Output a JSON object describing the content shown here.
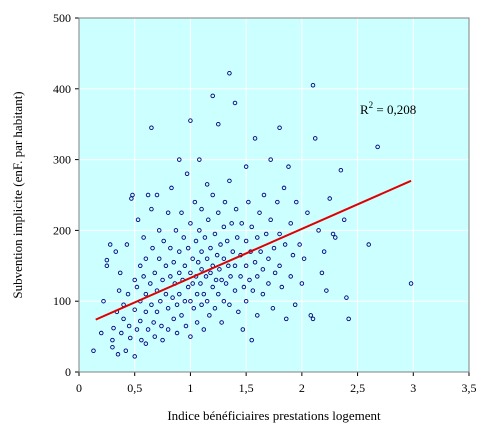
{
  "chart_data": {
    "type": "scatter",
    "xlabel": "Indice bénéficiaires prestations logement",
    "ylabel": "Subvention implicite (enF. par habitant)",
    "xlim": [
      0,
      3.5
    ],
    "ylim": [
      0,
      500
    ],
    "x_ticks": [
      "0",
      "0,5",
      "1",
      "1,5",
      "2",
      "2,5",
      "3",
      "3,5"
    ],
    "y_ticks": [
      "0",
      "100",
      "200",
      "300",
      "400",
      "500"
    ],
    "grid": true,
    "annotation": {
      "r2_label": "R",
      "r2_exp": "2",
      "r2_value": " = 0,208"
    },
    "colors": {
      "plot_bg": "#ccffff",
      "marker": "#000080",
      "trend": "#e00000",
      "grid": "#ffffff"
    },
    "trendline": {
      "x": [
        0.15,
        2.98
      ],
      "y": [
        74,
        270
      ]
    },
    "series": [
      {
        "points": [
          [
            0.13,
            30
          ],
          [
            0.2,
            55
          ],
          [
            0.22,
            100
          ],
          [
            0.25,
            158
          ],
          [
            0.25,
            150
          ],
          [
            0.28,
            180
          ],
          [
            0.3,
            45
          ],
          [
            0.3,
            35
          ],
          [
            0.31,
            62
          ],
          [
            0.33,
            170
          ],
          [
            0.34,
            85
          ],
          [
            0.35,
            25
          ],
          [
            0.36,
            115
          ],
          [
            0.37,
            140
          ],
          [
            0.38,
            55
          ],
          [
            0.4,
            75
          ],
          [
            0.4,
            95
          ],
          [
            0.42,
            30
          ],
          [
            0.43,
            180
          ],
          [
            0.44,
            110
          ],
          [
            0.45,
            65
          ],
          [
            0.46,
            48
          ],
          [
            0.47,
            245
          ],
          [
            0.48,
            250
          ],
          [
            0.5,
            130
          ],
          [
            0.5,
            88
          ],
          [
            0.5,
            22
          ],
          [
            0.52,
            120
          ],
          [
            0.52,
            60
          ],
          [
            0.53,
            215
          ],
          [
            0.55,
            150
          ],
          [
            0.55,
            100
          ],
          [
            0.55,
            72
          ],
          [
            0.56,
            45
          ],
          [
            0.58,
            190
          ],
          [
            0.58,
            135
          ],
          [
            0.6,
            160
          ],
          [
            0.6,
            110
          ],
          [
            0.6,
            85
          ],
          [
            0.6,
            40
          ],
          [
            0.62,
            250
          ],
          [
            0.62,
            60
          ],
          [
            0.64,
            125
          ],
          [
            0.65,
            345
          ],
          [
            0.65,
            95
          ],
          [
            0.65,
            230
          ],
          [
            0.66,
            175
          ],
          [
            0.67,
            70
          ],
          [
            0.68,
            140
          ],
          [
            0.68,
            50
          ],
          [
            0.7,
            250
          ],
          [
            0.7,
            115
          ],
          [
            0.7,
            85
          ],
          [
            0.72,
            160
          ],
          [
            0.72,
            200
          ],
          [
            0.73,
            100
          ],
          [
            0.74,
            65
          ],
          [
            0.75,
            130
          ],
          [
            0.75,
            45
          ],
          [
            0.76,
            185
          ],
          [
            0.78,
            110
          ],
          [
            0.78,
            150
          ],
          [
            0.8,
            225
          ],
          [
            0.8,
            90
          ],
          [
            0.8,
            60
          ],
          [
            0.82,
            135
          ],
          [
            0.82,
            175
          ],
          [
            0.83,
            260
          ],
          [
            0.84,
            105
          ],
          [
            0.85,
            75
          ],
          [
            0.85,
            155
          ],
          [
            0.86,
            125
          ],
          [
            0.87,
            200
          ],
          [
            0.88,
            95
          ],
          [
            0.88,
            55
          ],
          [
            0.9,
            300
          ],
          [
            0.9,
            140
          ],
          [
            0.9,
            110
          ],
          [
            0.9,
            170
          ],
          [
            0.92,
            80
          ],
          [
            0.92,
            225
          ],
          [
            0.93,
            130
          ],
          [
            0.94,
            190
          ],
          [
            0.95,
            100
          ],
          [
            0.95,
            150
          ],
          [
            0.96,
            65
          ],
          [
            0.97,
            280
          ],
          [
            0.98,
            120
          ],
          [
            0.98,
            175
          ],
          [
            1.0,
            355
          ],
          [
            1.0,
            140
          ],
          [
            1.0,
            100
          ],
          [
            1.0,
            210
          ],
          [
            1.0,
            50
          ],
          [
            1.02,
            160
          ],
          [
            1.02,
            125
          ],
          [
            1.03,
            90
          ],
          [
            1.04,
            240
          ],
          [
            1.05,
            185
          ],
          [
            1.05,
            135
          ],
          [
            1.06,
            110
          ],
          [
            1.06,
            70
          ],
          [
            1.07,
            155
          ],
          [
            1.08,
            200
          ],
          [
            1.08,
            300
          ],
          [
            1.09,
            125
          ],
          [
            1.1,
            95
          ],
          [
            1.1,
            170
          ],
          [
            1.1,
            145
          ],
          [
            1.1,
            230
          ],
          [
            1.12,
            110
          ],
          [
            1.12,
            60
          ],
          [
            1.13,
            190
          ],
          [
            1.14,
            135
          ],
          [
            1.15,
            265
          ],
          [
            1.15,
            160
          ],
          [
            1.15,
            100
          ],
          [
            1.16,
            215
          ],
          [
            1.17,
            80
          ],
          [
            1.18,
            140
          ],
          [
            1.18,
            175
          ],
          [
            1.2,
            390
          ],
          [
            1.2,
            120
          ],
          [
            1.2,
            250
          ],
          [
            1.2,
            150
          ],
          [
            1.22,
            195
          ],
          [
            1.22,
            90
          ],
          [
            1.23,
            130
          ],
          [
            1.24,
            165
          ],
          [
            1.25,
            350
          ],
          [
            1.25,
            225
          ],
          [
            1.25,
            110
          ],
          [
            1.26,
            145
          ],
          [
            1.27,
            180
          ],
          [
            1.28,
            70
          ],
          [
            1.28,
            130
          ],
          [
            1.3,
            205
          ],
          [
            1.3,
            160
          ],
          [
            1.3,
            100
          ],
          [
            1.31,
            240
          ],
          [
            1.32,
            125
          ],
          [
            1.33,
            185
          ],
          [
            1.34,
            150
          ],
          [
            1.35,
            422
          ],
          [
            1.35,
            95
          ],
          [
            1.35,
            270
          ],
          [
            1.36,
            135
          ],
          [
            1.37,
            210
          ],
          [
            1.38,
            170
          ],
          [
            1.4,
            380
          ],
          [
            1.4,
            115
          ],
          [
            1.4,
            150
          ],
          [
            1.41,
            230
          ],
          [
            1.42,
            190
          ],
          [
            1.43,
            85
          ],
          [
            1.45,
            135
          ],
          [
            1.45,
            165
          ],
          [
            1.46,
            210
          ],
          [
            1.47,
            60
          ],
          [
            1.48,
            120
          ],
          [
            1.5,
            290
          ],
          [
            1.5,
            150
          ],
          [
            1.5,
            185
          ],
          [
            1.5,
            100
          ],
          [
            1.52,
            240
          ],
          [
            1.53,
            130
          ],
          [
            1.54,
            170
          ],
          [
            1.55,
            45
          ],
          [
            1.55,
            205
          ],
          [
            1.56,
            115
          ],
          [
            1.58,
            155
          ],
          [
            1.58,
            330
          ],
          [
            1.6,
            190
          ],
          [
            1.6,
            135
          ],
          [
            1.6,
            80
          ],
          [
            1.62,
            225
          ],
          [
            1.63,
            170
          ],
          [
            1.65,
            145
          ],
          [
            1.65,
            110
          ],
          [
            1.66,
            250
          ],
          [
            1.68,
            195
          ],
          [
            1.7,
            160
          ],
          [
            1.7,
            125
          ],
          [
            1.72,
            300
          ],
          [
            1.72,
            215
          ],
          [
            1.74,
            90
          ],
          [
            1.75,
            175
          ],
          [
            1.76,
            140
          ],
          [
            1.78,
            240
          ],
          [
            1.8,
            345
          ],
          [
            1.8,
            195
          ],
          [
            1.8,
            150
          ],
          [
            1.82,
            120
          ],
          [
            1.84,
            260
          ],
          [
            1.85,
            180
          ],
          [
            1.86,
            75
          ],
          [
            1.88,
            290
          ],
          [
            1.9,
            210
          ],
          [
            1.9,
            135
          ],
          [
            1.92,
            165
          ],
          [
            1.94,
            95
          ],
          [
            1.95,
            240
          ],
          [
            1.98,
            180
          ],
          [
            2.0,
            125
          ],
          [
            2.02,
            160
          ],
          [
            2.05,
            225
          ],
          [
            2.08,
            80
          ],
          [
            2.1,
            405
          ],
          [
            2.1,
            75
          ],
          [
            2.12,
            330
          ],
          [
            2.15,
            200
          ],
          [
            2.18,
            140
          ],
          [
            2.2,
            170
          ],
          [
            2.22,
            115
          ],
          [
            2.25,
            245
          ],
          [
            2.28,
            195
          ],
          [
            2.3,
            190
          ],
          [
            2.35,
            285
          ],
          [
            2.38,
            215
          ],
          [
            2.4,
            105
          ],
          [
            2.42,
            75
          ],
          [
            2.6,
            180
          ],
          [
            2.68,
            318
          ],
          [
            2.98,
            125
          ]
        ]
      }
    ]
  }
}
